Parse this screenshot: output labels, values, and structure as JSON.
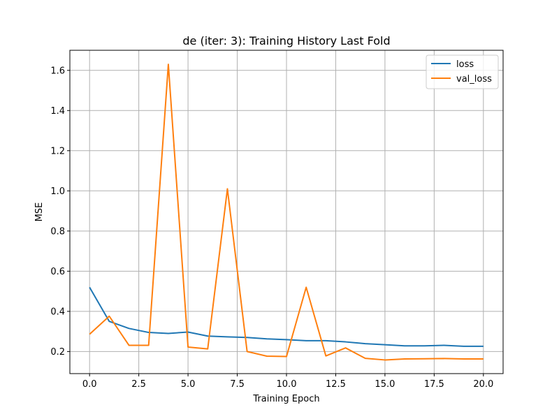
{
  "chart_data": {
    "type": "line",
    "title": "de (iter: 3): Training History Last Fold",
    "xlabel": "Training Epoch",
    "ylabel": "MSE",
    "xlim": [
      -1.0,
      21.0
    ],
    "ylim": [
      0.09,
      1.7
    ],
    "x_ticks": [
      0.0,
      2.5,
      5.0,
      7.5,
      10.0,
      12.5,
      15.0,
      17.5,
      20.0
    ],
    "x_tick_labels": [
      "0.0",
      "2.5",
      "5.0",
      "7.5",
      "10.0",
      "12.5",
      "15.0",
      "17.5",
      "20.0"
    ],
    "y_ticks": [
      0.2,
      0.4,
      0.6,
      0.8,
      1.0,
      1.2,
      1.4,
      1.6
    ],
    "y_tick_labels": [
      "0.2",
      "0.4",
      "0.6",
      "0.8",
      "1.0",
      "1.2",
      "1.4",
      "1.6"
    ],
    "grid": true,
    "legend_position": "top-right",
    "x": [
      0,
      1,
      2,
      3,
      4,
      5,
      6,
      7,
      8,
      9,
      10,
      11,
      12,
      13,
      14,
      15,
      16,
      17,
      18,
      19,
      20
    ],
    "series": [
      {
        "name": "loss",
        "color": "#1f77b4",
        "values": [
          0.52,
          0.35,
          0.315,
          0.295,
          0.29,
          0.297,
          0.277,
          0.273,
          0.27,
          0.263,
          0.259,
          0.254,
          0.254,
          0.248,
          0.239,
          0.234,
          0.228,
          0.228,
          0.231,
          0.226,
          0.226
        ]
      },
      {
        "name": "val_loss",
        "color": "#ff7f0e",
        "values": [
          0.286,
          0.376,
          0.231,
          0.231,
          1.63,
          0.222,
          0.213,
          1.01,
          0.2,
          0.177,
          0.175,
          0.52,
          0.178,
          0.218,
          0.166,
          0.158,
          0.163,
          0.164,
          0.165,
          0.163,
          0.163
        ]
      }
    ]
  }
}
